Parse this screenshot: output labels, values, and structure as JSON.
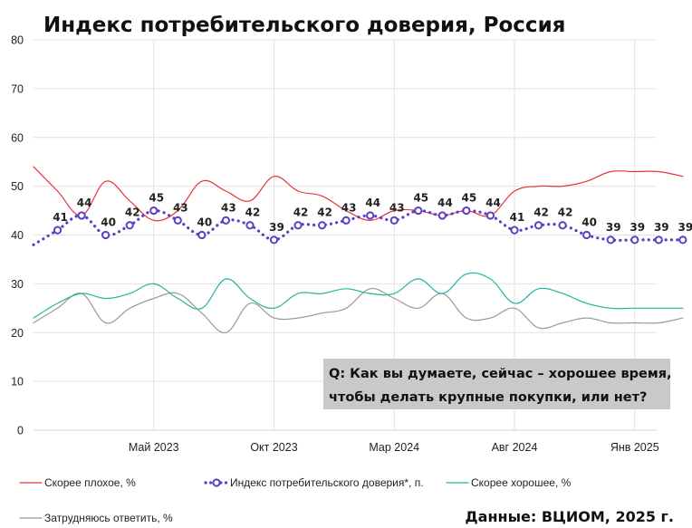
{
  "chart_data": {
    "type": "line",
    "title": "Индекс потребительского доверия, Россия",
    "question": "Q: Как вы думаете, сейчас – хорошее время, чтобы делать крупные покупки, или нет?",
    "question_lines": [
      "Q: Как вы думаете, сейчас – хорошее время,",
      "чтобы делать крупные покупки, или нет?"
    ],
    "source": "Данные: ВЦИОМ, 2025 г.",
    "ylim": [
      0,
      80
    ],
    "yticks": [
      0,
      10,
      20,
      30,
      40,
      50,
      60,
      70,
      80
    ],
    "grid": true,
    "legend_position": "bottom",
    "x": [
      "2022-12",
      "2023-01",
      "2023-02",
      "2023-03",
      "2023-04",
      "2023-05",
      "2023-06",
      "2023-07",
      "2023-08",
      "2023-09",
      "2023-10",
      "2023-11",
      "2023-12",
      "2024-01",
      "2024-02",
      "2024-03",
      "2024-04",
      "2024-05",
      "2024-06",
      "2024-07",
      "2024-08",
      "2024-09",
      "2024-10",
      "2024-11",
      "2024-12",
      "2025-01",
      "2025-02",
      "2025-03"
    ],
    "xticks": [
      {
        "label": "Май 2023",
        "x": "2023-05"
      },
      {
        "label": "Окт 2023",
        "x": "2023-10"
      },
      {
        "label": "Мар 2024",
        "x": "2024-03"
      },
      {
        "label": "Авг 2024",
        "x": "2024-08"
      },
      {
        "label": "Янв 2025",
        "x": "2025-01"
      }
    ],
    "series": [
      {
        "name": "Скорее плохое, %",
        "color": "#e8323c",
        "style": "solid",
        "values": [
          54,
          49,
          44,
          51,
          47,
          43,
          45,
          51,
          49,
          47,
          52,
          49,
          48,
          45,
          43,
          45,
          45,
          44,
          45,
          44,
          49,
          50,
          50,
          51,
          53,
          53,
          53,
          52
        ]
      },
      {
        "name": "Индекс потребительского доверия*, п.",
        "color": "#5b3fc4",
        "style": "dotted-markers",
        "values": [
          38,
          41,
          44,
          40,
          42,
          45,
          43,
          40,
          43,
          42,
          39,
          42,
          42,
          43,
          44,
          43,
          45,
          44,
          45,
          44,
          41,
          42,
          42,
          40,
          39,
          39,
          39,
          39
        ],
        "labels": [
          "",
          "41",
          "44",
          "40",
          "42",
          "45",
          "43",
          "40",
          "43",
          "42",
          "39",
          "42",
          "42",
          "43",
          "44",
          "43",
          "45",
          "44",
          "45",
          "44",
          "41",
          "42",
          "42",
          "40",
          "39",
          "39",
          "39",
          "39"
        ]
      },
      {
        "name": "Скорее хорошее, %",
        "color": "#1fb5a0",
        "style": "solid",
        "values": [
          23,
          26,
          28,
          27,
          28,
          30,
          27,
          25,
          31,
          27,
          25,
          28,
          28,
          29,
          28,
          28,
          31,
          28,
          32,
          31,
          26,
          29,
          28,
          26,
          25,
          25,
          25,
          25
        ]
      },
      {
        "name": "Затрудняюсь ответить, %",
        "color": "#9a9a9a",
        "style": "solid",
        "values": [
          22,
          25,
          28,
          22,
          25,
          27,
          28,
          24,
          20,
          26,
          23,
          23,
          24,
          25,
          29,
          27,
          25,
          28,
          23,
          23,
          25,
          21,
          22,
          23,
          22,
          22,
          22,
          23
        ]
      }
    ]
  }
}
